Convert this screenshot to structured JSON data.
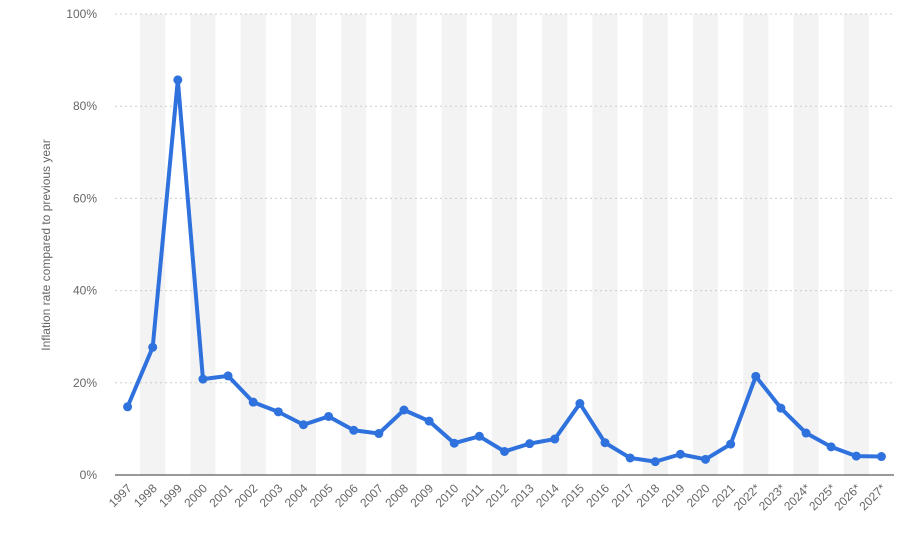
{
  "chart_data": {
    "type": "line",
    "y_label": "Inflation rate compared to previous year",
    "categories": [
      "1997",
      "1998",
      "1999",
      "2000",
      "2001",
      "2002",
      "2003",
      "2004",
      "2005",
      "2006",
      "2007",
      "2008",
      "2009",
      "2010",
      "2011",
      "2012",
      "2013",
      "2014",
      "2015",
      "2016",
      "2017",
      "2018",
      "2019",
      "2020",
      "2021",
      "2022*",
      "2023*",
      "2024*",
      "2025*",
      "2026*",
      "2027*"
    ],
    "values": [
      14.8,
      27.7,
      85.7,
      20.8,
      21.5,
      15.8,
      13.7,
      10.9,
      12.7,
      9.7,
      9.0,
      14.1,
      11.7,
      6.9,
      8.4,
      5.1,
      6.8,
      7.8,
      15.5,
      7.0,
      3.7,
      2.9,
      4.5,
      3.4,
      6.7,
      21.4,
      14.5,
      9.1,
      6.1,
      4.1,
      4.0
    ],
    "color": "#2f72de",
    "ylim": [
      0,
      100
    ],
    "yticks": [
      {
        "value": 0,
        "label": "0%"
      },
      {
        "value": 20,
        "label": "20%"
      },
      {
        "value": 40,
        "label": "40%"
      },
      {
        "value": 60,
        "label": "60%"
      },
      {
        "value": 80,
        "label": "80%"
      },
      {
        "value": 100,
        "label": "100%"
      }
    ],
    "grid": true
  }
}
